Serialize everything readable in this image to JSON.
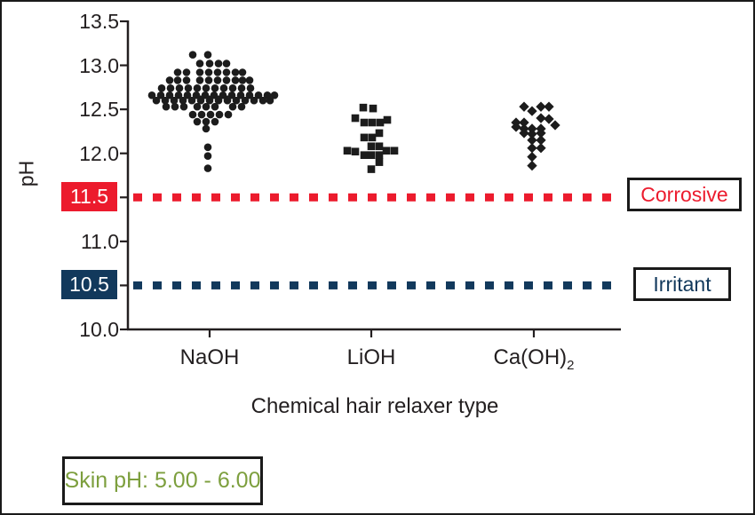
{
  "colors": {
    "corrosive_red": "#ec1b2d",
    "irritant_navy": "#12395c",
    "skin_green": "#7d9f3e",
    "ink": "#231f20",
    "marker_black": "#1c1c1c"
  },
  "annotations": {
    "skin_ph": "Skin pH: 5.00 - 6.00"
  },
  "chart_data": {
    "type": "scatter",
    "subtype": "beeswarm-dot-plot",
    "title": "",
    "xlabel": "Chemical hair relaxer type",
    "ylabel": "pH",
    "ylim": [
      10.0,
      13.5
    ],
    "y_tick_step": 0.5,
    "grid": false,
    "y_ticks": [
      {
        "label": "13.5",
        "value": 13.5,
        "highlight": "none"
      },
      {
        "label": "13.0",
        "value": 13.0,
        "highlight": "none"
      },
      {
        "label": "12.5",
        "value": 12.5,
        "highlight": "none"
      },
      {
        "label": "12.0",
        "value": 12.0,
        "highlight": "none"
      },
      {
        "label": "11.5",
        "value": 11.5,
        "highlight": "red"
      },
      {
        "label": "11.0",
        "value": 11.0,
        "highlight": "none"
      },
      {
        "label": "10.5",
        "value": 10.5,
        "highlight": "navy"
      },
      {
        "label": "10.0",
        "value": 10.0,
        "highlight": "none"
      }
    ],
    "categories": [
      "NaOH",
      "LiOH",
      "Ca(OH)2"
    ],
    "category_labels": [
      {
        "text": "NaOH",
        "sub": ""
      },
      {
        "text": "LiOH",
        "sub": ""
      },
      {
        "text": "Ca(OH)",
        "sub": "2"
      }
    ],
    "reference_lines": [
      {
        "label": "Corrosive",
        "value": 11.5,
        "color": "#ec1b2d",
        "style": "dotted"
      },
      {
        "label": "Irritant",
        "value": 10.5,
        "color": "#12395c",
        "style": "dotted"
      }
    ],
    "series": [
      {
        "name": "NaOH",
        "marker": "circle",
        "median": 12.64,
        "points": [
          [
            13.12,
            -19
          ],
          [
            13.12,
            -2
          ],
          [
            13.02,
            -11
          ],
          [
            13.02,
            0
          ],
          [
            13.02,
            10
          ],
          [
            13.02,
            19
          ],
          [
            12.92,
            -36
          ],
          [
            12.92,
            -26
          ],
          [
            12.92,
            -11
          ],
          [
            12.92,
            -1
          ],
          [
            12.92,
            9
          ],
          [
            12.92,
            19
          ],
          [
            12.92,
            29
          ],
          [
            12.92,
            37
          ],
          [
            12.83,
            -45
          ],
          [
            12.83,
            -36
          ],
          [
            12.83,
            -26
          ],
          [
            12.83,
            -11
          ],
          [
            12.83,
            -1
          ],
          [
            12.83,
            9
          ],
          [
            12.83,
            19
          ],
          [
            12.83,
            29
          ],
          [
            12.83,
            37
          ],
          [
            12.83,
            45
          ],
          [
            12.74,
            -54
          ],
          [
            12.74,
            -44
          ],
          [
            12.74,
            -34
          ],
          [
            12.74,
            -24
          ],
          [
            12.74,
            -14
          ],
          [
            12.74,
            -4
          ],
          [
            12.74,
            6
          ],
          [
            12.74,
            16
          ],
          [
            12.74,
            26
          ],
          [
            12.74,
            36
          ],
          [
            12.74,
            46
          ],
          [
            12.66,
            -65
          ],
          [
            12.66,
            -55
          ],
          [
            12.66,
            -45
          ],
          [
            12.66,
            -35
          ],
          [
            12.66,
            -25
          ],
          [
            12.66,
            -15
          ],
          [
            12.66,
            -5
          ],
          [
            12.66,
            5
          ],
          [
            12.66,
            15
          ],
          [
            12.66,
            25
          ],
          [
            12.66,
            35
          ],
          [
            12.66,
            45
          ],
          [
            12.66,
            55
          ],
          [
            12.66,
            65
          ],
          [
            12.66,
            73
          ],
          [
            12.6,
            -60
          ],
          [
            12.6,
            -50
          ],
          [
            12.6,
            -40
          ],
          [
            12.6,
            -30
          ],
          [
            12.6,
            -20
          ],
          [
            12.6,
            -10
          ],
          [
            12.6,
            0
          ],
          [
            12.6,
            10
          ],
          [
            12.6,
            20
          ],
          [
            12.6,
            30
          ],
          [
            12.6,
            40
          ],
          [
            12.6,
            50
          ],
          [
            12.6,
            60
          ],
          [
            12.6,
            68
          ],
          [
            12.53,
            -49
          ],
          [
            12.53,
            -39
          ],
          [
            12.53,
            -29
          ],
          [
            12.53,
            -14
          ],
          [
            12.53,
            -4
          ],
          [
            12.53,
            6
          ],
          [
            12.53,
            26
          ],
          [
            12.53,
            36
          ],
          [
            12.44,
            -19
          ],
          [
            12.44,
            -9
          ],
          [
            12.44,
            1
          ],
          [
            12.44,
            11
          ],
          [
            12.44,
            21
          ],
          [
            12.36,
            -14
          ],
          [
            12.36,
            -4
          ],
          [
            12.36,
            6
          ],
          [
            12.28,
            -4
          ],
          [
            12.07,
            -2
          ],
          [
            11.97,
            -2
          ],
          [
            11.83,
            -2
          ]
        ]
      },
      {
        "name": "LiOH",
        "marker": "square",
        "points": [
          [
            12.52,
            -9
          ],
          [
            12.51,
            2
          ],
          [
            12.4,
            -18
          ],
          [
            12.38,
            18
          ],
          [
            12.35,
            -8
          ],
          [
            12.35,
            1
          ],
          [
            12.35,
            10
          ],
          [
            12.23,
            9
          ],
          [
            12.18,
            -8
          ],
          [
            12.18,
            1
          ],
          [
            12.08,
            0
          ],
          [
            12.08,
            9
          ],
          [
            12.03,
            -27
          ],
          [
            12.02,
            -18
          ],
          [
            12.03,
            17
          ],
          [
            12.03,
            26
          ],
          [
            11.98,
            -8
          ],
          [
            11.98,
            0
          ],
          [
            11.98,
            9
          ],
          [
            11.9,
            9
          ],
          [
            11.82,
            0
          ]
        ]
      },
      {
        "name": "Ca(OH)2",
        "marker": "diamond",
        "points": [
          [
            12.53,
            -11
          ],
          [
            12.53,
            8
          ],
          [
            12.53,
            17
          ],
          [
            12.48,
            -2
          ],
          [
            12.4,
            8
          ],
          [
            12.39,
            17
          ],
          [
            12.35,
            -20
          ],
          [
            12.35,
            -11
          ],
          [
            12.32,
            24
          ],
          [
            12.3,
            -20
          ],
          [
            12.28,
            -11
          ],
          [
            12.28,
            -2
          ],
          [
            12.28,
            8
          ],
          [
            12.23,
            -11
          ],
          [
            12.22,
            -2
          ],
          [
            12.23,
            8
          ],
          [
            12.15,
            -2
          ],
          [
            12.15,
            8
          ],
          [
            12.06,
            -2
          ],
          [
            12.06,
            8
          ],
          [
            11.96,
            -2
          ],
          [
            11.86,
            -2
          ]
        ]
      }
    ]
  }
}
